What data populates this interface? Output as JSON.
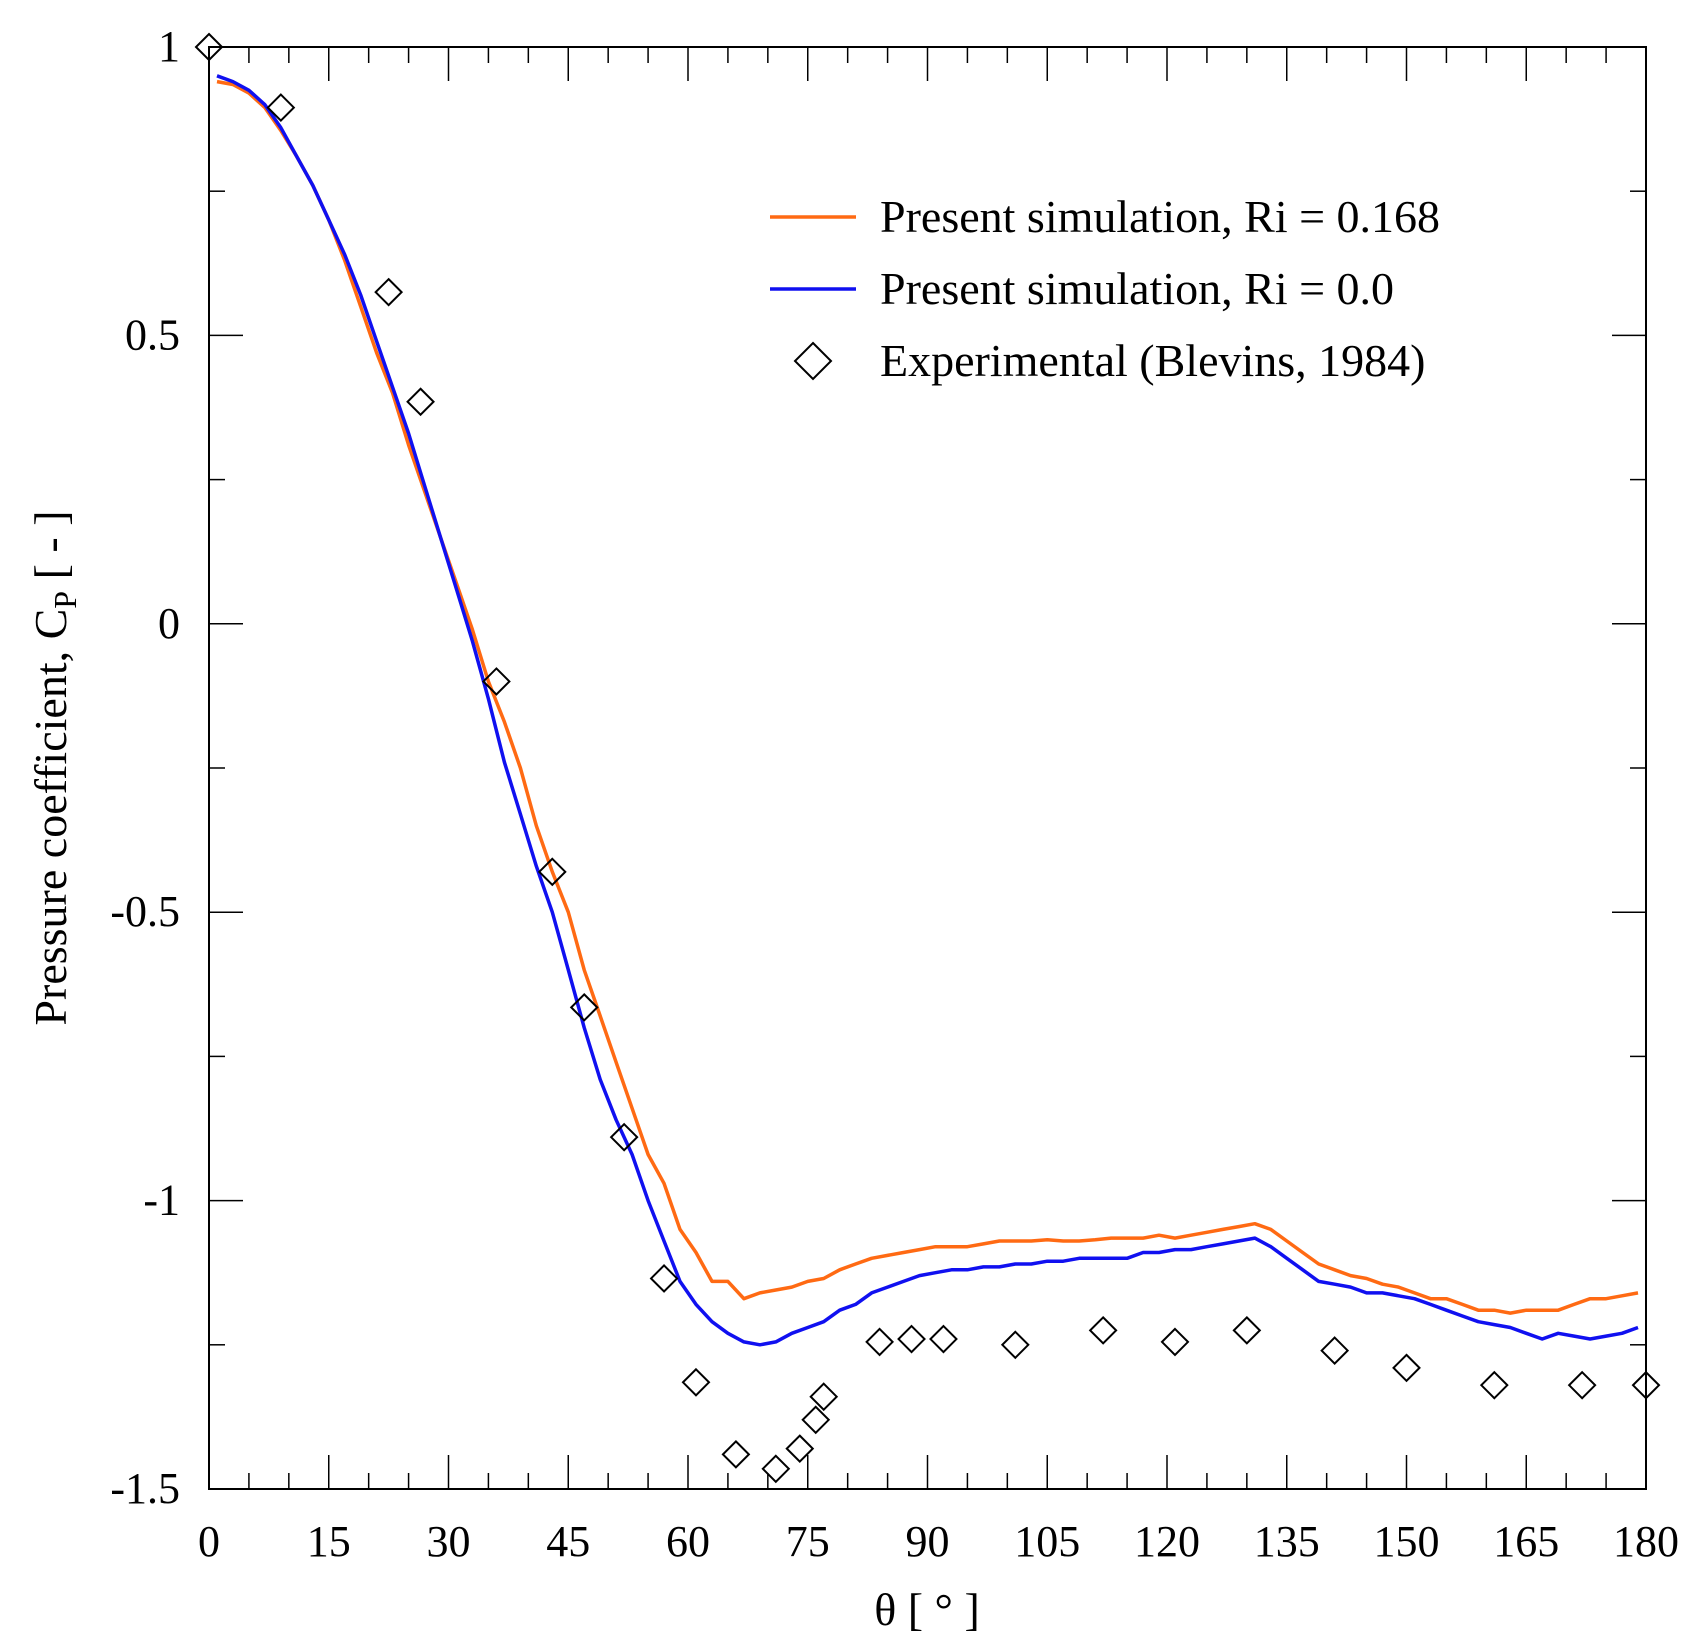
{
  "chart_data": {
    "type": "line",
    "title": "",
    "xlabel": "θ  [ ° ]",
    "ylabel_main": "Pressure coefficient, C",
    "ylabel_sub": "P",
    "ylabel_suffix": " [ - ]",
    "xlim": [
      0,
      180
    ],
    "ylim": [
      -1.5,
      1
    ],
    "x_ticks": [
      0,
      15,
      30,
      45,
      60,
      75,
      90,
      105,
      120,
      135,
      150,
      165,
      180
    ],
    "x_tick_labels": [
      "0",
      "15",
      "30",
      "45",
      "60",
      "75",
      "90",
      "105",
      "120",
      "135",
      "150",
      "165",
      "180"
    ],
    "x_minor_step": 5,
    "y_ticks": [
      1,
      0.5,
      0,
      -0.5,
      -1,
      -1.5
    ],
    "y_tick_labels": [
      "1",
      "0.5",
      "0",
      "-0.5",
      "-1",
      "-1.5"
    ],
    "y_minor_step": 0.25,
    "grid": false,
    "legend_position": "top-right",
    "series": [
      {
        "name": "Present simulation, Ri = 0.168",
        "style": "line",
        "color": "#ff6a13",
        "x": [
          1,
          3,
          5,
          7,
          9,
          11,
          13,
          15,
          17,
          19,
          21,
          23,
          25,
          27,
          29,
          31,
          33,
          35,
          37,
          39,
          41,
          43,
          45,
          47,
          49,
          51,
          53,
          55,
          57,
          59,
          61,
          63,
          65,
          67,
          69,
          71,
          73,
          75,
          77,
          79,
          81,
          83,
          85,
          87,
          89,
          91,
          93,
          95,
          97,
          99,
          101,
          103,
          105,
          107,
          109,
          111,
          113,
          115,
          117,
          119,
          121,
          123,
          125,
          127,
          129,
          131,
          133,
          135,
          137,
          139,
          141,
          143,
          145,
          147,
          149,
          151,
          153,
          155,
          157,
          159,
          161,
          163,
          165,
          167,
          169,
          171,
          173,
          175,
          177,
          179
        ],
        "y": [
          0.94,
          0.935,
          0.92,
          0.895,
          0.855,
          0.81,
          0.76,
          0.7,
          0.63,
          0.55,
          0.47,
          0.4,
          0.31,
          0.23,
          0.15,
          0.07,
          -0.01,
          -0.1,
          -0.17,
          -0.25,
          -0.35,
          -0.43,
          -0.5,
          -0.6,
          -0.68,
          -0.76,
          -0.84,
          -0.92,
          -0.97,
          -1.05,
          -1.09,
          -1.14,
          -1.14,
          -1.17,
          -1.16,
          -1.155,
          -1.15,
          -1.14,
          -1.135,
          -1.12,
          -1.11,
          -1.1,
          -1.095,
          -1.09,
          -1.085,
          -1.08,
          -1.08,
          -1.08,
          -1.075,
          -1.07,
          -1.07,
          -1.07,
          -1.068,
          -1.07,
          -1.07,
          -1.068,
          -1.065,
          -1.065,
          -1.065,
          -1.06,
          -1.065,
          -1.06,
          -1.055,
          -1.05,
          -1.045,
          -1.04,
          -1.05,
          -1.07,
          -1.09,
          -1.11,
          -1.12,
          -1.13,
          -1.135,
          -1.145,
          -1.15,
          -1.16,
          -1.17,
          -1.17,
          -1.18,
          -1.19,
          -1.19,
          -1.195,
          -1.19,
          -1.19,
          -1.19,
          -1.18,
          -1.17,
          -1.17,
          -1.165,
          -1.16
        ]
      },
      {
        "name": "Present simulation, Ri = 0.0",
        "style": "line",
        "color": "#1010f0",
        "x": [
          1,
          3,
          5,
          7,
          9,
          11,
          13,
          15,
          17,
          19,
          21,
          23,
          25,
          27,
          29,
          31,
          33,
          35,
          37,
          39,
          41,
          43,
          45,
          47,
          49,
          51,
          53,
          55,
          57,
          59,
          61,
          63,
          65,
          67,
          69,
          71,
          73,
          75,
          77,
          79,
          81,
          83,
          85,
          87,
          89,
          91,
          93,
          95,
          97,
          99,
          101,
          103,
          105,
          107,
          109,
          111,
          113,
          115,
          117,
          119,
          121,
          123,
          125,
          127,
          129,
          131,
          133,
          135,
          137,
          139,
          141,
          143,
          145,
          147,
          149,
          151,
          153,
          155,
          157,
          159,
          161,
          163,
          165,
          167,
          169,
          171,
          173,
          175,
          177,
          179
        ],
        "y": [
          0.95,
          0.94,
          0.925,
          0.9,
          0.86,
          0.81,
          0.76,
          0.7,
          0.64,
          0.57,
          0.49,
          0.41,
          0.33,
          0.24,
          0.15,
          0.06,
          -0.03,
          -0.13,
          -0.24,
          -0.33,
          -0.42,
          -0.5,
          -0.6,
          -0.7,
          -0.79,
          -0.86,
          -0.92,
          -1.0,
          -1.07,
          -1.14,
          -1.18,
          -1.21,
          -1.23,
          -1.245,
          -1.25,
          -1.245,
          -1.23,
          -1.22,
          -1.21,
          -1.19,
          -1.18,
          -1.16,
          -1.15,
          -1.14,
          -1.13,
          -1.125,
          -1.12,
          -1.12,
          -1.115,
          -1.115,
          -1.11,
          -1.11,
          -1.105,
          -1.105,
          -1.1,
          -1.1,
          -1.1,
          -1.1,
          -1.09,
          -1.09,
          -1.085,
          -1.085,
          -1.08,
          -1.075,
          -1.07,
          -1.065,
          -1.08,
          -1.1,
          -1.12,
          -1.14,
          -1.145,
          -1.15,
          -1.16,
          -1.16,
          -1.165,
          -1.17,
          -1.18,
          -1.19,
          -1.2,
          -1.21,
          -1.215,
          -1.22,
          -1.23,
          -1.24,
          -1.23,
          -1.235,
          -1.24,
          -1.235,
          -1.23,
          -1.22
        ]
      },
      {
        "name": "Experimental (Blevins, 1984)",
        "style": "marker-diamond-open",
        "color": "#000000",
        "x": [
          0,
          9,
          22.5,
          26.5,
          36,
          43,
          47,
          52,
          57,
          61,
          66,
          71,
          74,
          76,
          77,
          84,
          88,
          92,
          101,
          112,
          121,
          130,
          141,
          150,
          161,
          172,
          180
        ],
        "y": [
          1.0,
          0.895,
          0.575,
          0.385,
          -0.1,
          -0.43,
          -0.665,
          -0.89,
          -1.135,
          -1.315,
          -1.44,
          -1.465,
          -1.43,
          -1.38,
          -1.34,
          -1.245,
          -1.24,
          -1.24,
          -1.25,
          -1.225,
          -1.245,
          -1.225,
          -1.26,
          -1.29,
          -1.32,
          -1.32,
          -1.32
        ]
      }
    ]
  }
}
